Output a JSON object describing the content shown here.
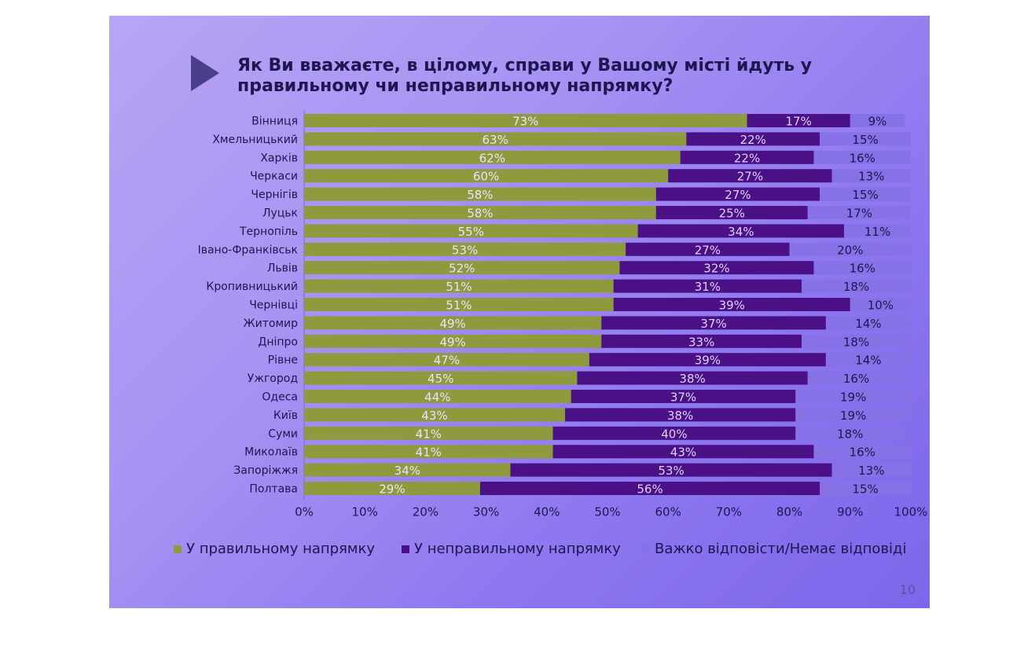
{
  "title_lines": [
    "Як Ви вважаєте, в цілому, справи у Вашому місті йдуть у",
    "правильному чи неправильному напрямку?"
  ],
  "page_number": "10",
  "colors": {
    "right_direction": "#8f9a3c",
    "wrong_direction": "#4b0f86",
    "hard_to_say": "#8671e6",
    "text": "#1d1650"
  },
  "chart_data": {
    "type": "bar",
    "orientation": "horizontal",
    "stacked": true,
    "title": "Як Ви вважаєте, в цілому, справи у Вашому місті йдуть у правильному чи неправильному напрямку?",
    "categories": [
      "Вінниця",
      "Хмельницький",
      "Харків",
      "Черкаси",
      "Чернігів",
      "Луцьк",
      "Тернопіль",
      "Івано-Франківськ",
      "Львів",
      "Кропивницький",
      "Чернівці",
      "Житомир",
      "Дніпро",
      "Рівне",
      "Ужгород",
      "Одеса",
      "Київ",
      "Суми",
      "Миколаїв",
      "Запоріжжя",
      "Полтава"
    ],
    "series": [
      {
        "name": "У правильному напрямку",
        "values": [
          73,
          63,
          62,
          60,
          58,
          58,
          55,
          53,
          52,
          51,
          51,
          49,
          49,
          47,
          45,
          44,
          43,
          41,
          41,
          34,
          29
        ]
      },
      {
        "name": "У неправильному напрямку",
        "values": [
          17,
          22,
          22,
          27,
          27,
          25,
          34,
          27,
          32,
          31,
          39,
          37,
          33,
          39,
          38,
          37,
          38,
          40,
          43,
          53,
          56
        ]
      },
      {
        "name": "Важко відповісти/Немає відповіді",
        "values": [
          9,
          15,
          16,
          13,
          15,
          17,
          11,
          20,
          16,
          18,
          10,
          14,
          18,
          14,
          16,
          19,
          19,
          18,
          16,
          13,
          15
        ]
      }
    ],
    "x_ticks": [
      "0%",
      "10%",
      "20%",
      "30%",
      "40%",
      "50%",
      "60%",
      "70%",
      "80%",
      "90%",
      "100%"
    ],
    "xlim": [
      0,
      100
    ],
    "value_suffix": "%",
    "legend_position": "bottom"
  }
}
